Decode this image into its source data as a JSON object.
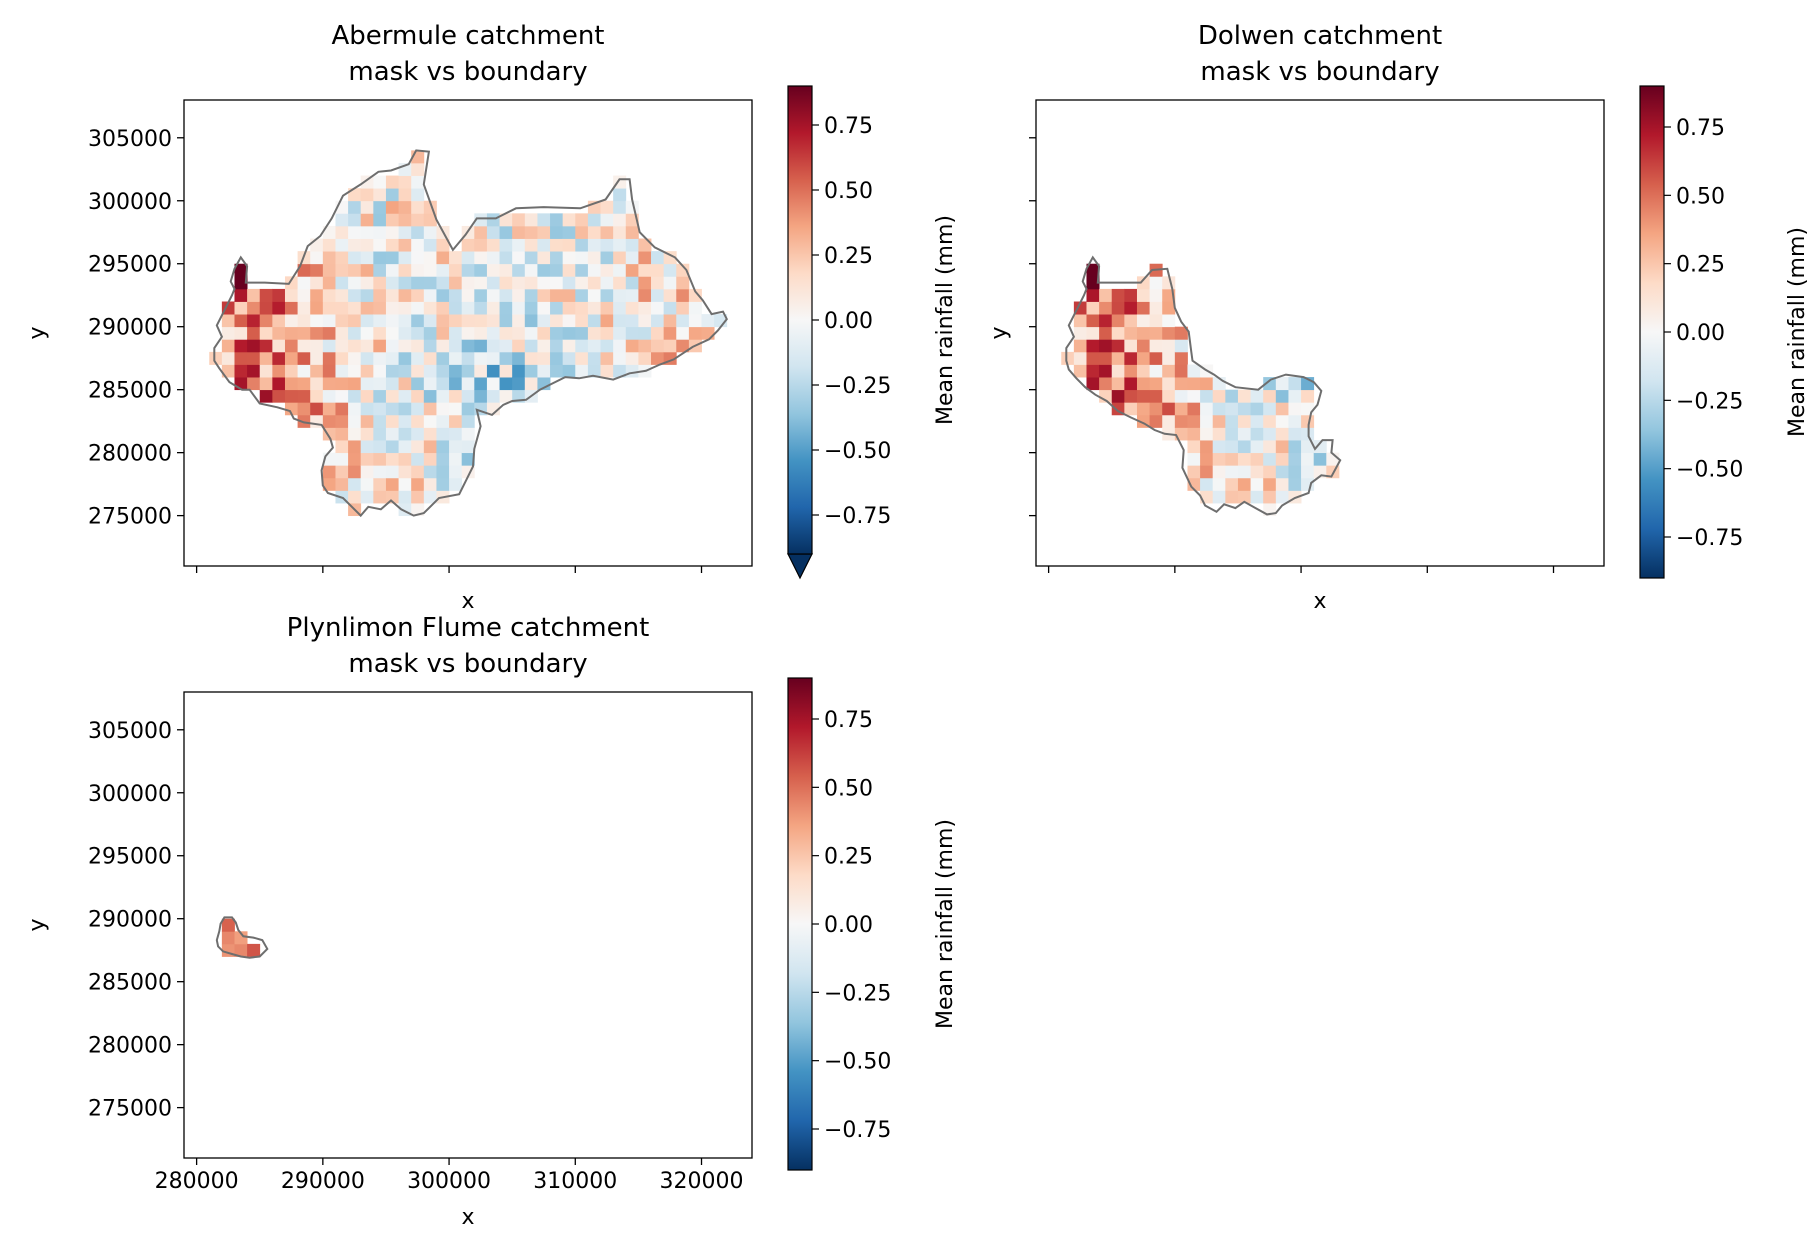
{
  "colorbar_label": "Mean rainfall (mm)",
  "colorbar_ticks": [
    "0.75",
    "0.50",
    "0.25",
    "0.00",
    "−0.25",
    "−0.50",
    "−0.75"
  ],
  "colormap": [
    "#053061",
    "#2166ac",
    "#4393c3",
    "#92c5de",
    "#d1e5f0",
    "#f7f7f7",
    "#fddbc7",
    "#f4a582",
    "#d6604d",
    "#b2182b",
    "#67001f"
  ],
  "boundary_color": "#6e6e6e",
  "chart_data": [
    {
      "type": "heatmap",
      "title": "Abermule catchment\nmask vs boundary",
      "xlabel": "x",
      "ylabel": "y",
      "xlim": [
        279000,
        324000
      ],
      "ylim": [
        271000,
        308000
      ],
      "xticks": [
        280000,
        290000,
        300000,
        310000,
        320000
      ],
      "xticklabels_visible": false,
      "yticks": [
        275000,
        280000,
        285000,
        290000,
        295000,
        300000,
        305000
      ],
      "yticklabels": [
        "275000",
        "280000",
        "285000",
        "290000",
        "295000",
        "300000",
        "305000"
      ],
      "colorbar": {
        "vmin": -0.9,
        "vmax": 0.9,
        "extend": "min",
        "label": "Mean rainfall (mm)"
      },
      "catchment": "abermule",
      "boundary": [
        [
          281400,
          288300
        ],
        [
          282000,
          289200
        ],
        [
          281600,
          290100
        ],
        [
          282300,
          291500
        ],
        [
          282800,
          292500
        ],
        [
          283000,
          293000
        ],
        [
          282700,
          293600
        ],
        [
          283000,
          294600
        ],
        [
          283500,
          295500
        ],
        [
          284000,
          294800
        ],
        [
          283900,
          293500
        ],
        [
          285400,
          293500
        ],
        [
          287300,
          293400
        ],
        [
          288200,
          294800
        ],
        [
          288800,
          296400
        ],
        [
          289800,
          297200
        ],
        [
          290700,
          298600
        ],
        [
          291600,
          300400
        ],
        [
          293000,
          301300
        ],
        [
          294400,
          302300
        ],
        [
          295400,
          302400
        ],
        [
          296800,
          302900
        ],
        [
          297400,
          304000
        ],
        [
          298400,
          303900
        ],
        [
          298000,
          301300
        ],
        [
          299000,
          298500
        ],
        [
          300300,
          296100
        ],
        [
          301300,
          297300
        ],
        [
          302200,
          298600
        ],
        [
          303700,
          298600
        ],
        [
          305300,
          299400
        ],
        [
          307500,
          299500
        ],
        [
          310400,
          299400
        ],
        [
          312400,
          300100
        ],
        [
          313500,
          301700
        ],
        [
          314300,
          301700
        ],
        [
          314500,
          300100
        ],
        [
          315100,
          297500
        ],
        [
          316300,
          296300
        ],
        [
          317900,
          295500
        ],
        [
          318800,
          294500
        ],
        [
          319500,
          292800
        ],
        [
          320100,
          292100
        ],
        [
          320800,
          291000
        ],
        [
          321700,
          291200
        ],
        [
          322000,
          290600
        ],
        [
          321300,
          289700
        ],
        [
          320600,
          289000
        ],
        [
          319300,
          288400
        ],
        [
          317800,
          287400
        ],
        [
          316700,
          287000
        ],
        [
          315600,
          286500
        ],
        [
          314300,
          286300
        ],
        [
          313000,
          285800
        ],
        [
          311400,
          286100
        ],
        [
          310300,
          285900
        ],
        [
          309200,
          286000
        ],
        [
          308200,
          285500
        ],
        [
          307200,
          285000
        ],
        [
          306100,
          284200
        ],
        [
          305000,
          284100
        ],
        [
          304300,
          283800
        ],
        [
          303400,
          283000
        ],
        [
          302200,
          283400
        ],
        [
          302500,
          282100
        ],
        [
          302000,
          280300
        ],
        [
          301900,
          278900
        ],
        [
          301300,
          277700
        ],
        [
          300800,
          276700
        ],
        [
          299200,
          276400
        ],
        [
          298700,
          275900
        ],
        [
          298000,
          275200
        ],
        [
          297200,
          275000
        ],
        [
          296200,
          275500
        ],
        [
          295400,
          276200
        ],
        [
          294600,
          275500
        ],
        [
          293600,
          275700
        ],
        [
          293000,
          275000
        ],
        [
          291600,
          276400
        ],
        [
          290400,
          276800
        ],
        [
          290000,
          277400
        ],
        [
          289900,
          278600
        ],
        [
          290200,
          279700
        ],
        [
          290800,
          280400
        ],
        [
          290600,
          281100
        ],
        [
          289900,
          282200
        ],
        [
          288500,
          282400
        ],
        [
          287700,
          282700
        ],
        [
          287400,
          283300
        ],
        [
          286400,
          283600
        ],
        [
          285000,
          283900
        ],
        [
          284200,
          285000
        ],
        [
          283600,
          285000
        ],
        [
          282600,
          285600
        ],
        [
          281800,
          286700
        ],
        [
          281400,
          287300
        ],
        [
          281400,
          288300
        ]
      ],
      "cells": {
        "dx": 1000,
        "dy": 1000,
        "x0": 281500,
        "y0": 275500,
        "ncols": 39,
        "nrows": 28,
        "note": "values within boundary only"
      }
    },
    {
      "type": "heatmap",
      "title": "Dolwen catchment\nmask vs boundary",
      "xlabel": "x",
      "ylabel": "y",
      "xlim": [
        279000,
        324000
      ],
      "ylim": [
        271000,
        308000
      ],
      "xticks": [
        280000,
        290000,
        300000,
        310000,
        320000
      ],
      "xticklabels_visible": false,
      "yticks": [
        275000,
        280000,
        285000,
        290000,
        295000,
        300000,
        305000
      ],
      "yticklabels_visible": false,
      "colorbar": {
        "vmin": -0.9,
        "vmax": 0.9,
        "extend": "neither",
        "label": "Mean rainfall (mm)"
      },
      "catchment": "dolwen",
      "boundary": [
        [
          281400,
          288300
        ],
        [
          282000,
          289200
        ],
        [
          281600,
          290100
        ],
        [
          282300,
          291500
        ],
        [
          282800,
          292500
        ],
        [
          283000,
          293000
        ],
        [
          282700,
          293600
        ],
        [
          283000,
          294600
        ],
        [
          283500,
          295500
        ],
        [
          284000,
          294800
        ],
        [
          283900,
          293500
        ],
        [
          285400,
          293500
        ],
        [
          287300,
          293500
        ],
        [
          288200,
          294500
        ],
        [
          289400,
          294600
        ],
        [
          289800,
          293000
        ],
        [
          290000,
          291500
        ],
        [
          290500,
          290400
        ],
        [
          291100,
          289600
        ],
        [
          291300,
          288000
        ],
        [
          291400,
          287300
        ],
        [
          292400,
          286600
        ],
        [
          293100,
          286200
        ],
        [
          293800,
          285700
        ],
        [
          294800,
          285200
        ],
        [
          296600,
          285000
        ],
        [
          297600,
          285800
        ],
        [
          298800,
          286200
        ],
        [
          300200,
          286000
        ],
        [
          301000,
          285600
        ],
        [
          301600,
          284900
        ],
        [
          301300,
          283800
        ],
        [
          300800,
          283200
        ],
        [
          300600,
          282200
        ],
        [
          300600,
          281300
        ],
        [
          301100,
          280300
        ],
        [
          301700,
          281000
        ],
        [
          302500,
          281000
        ],
        [
          302400,
          280000
        ],
        [
          303100,
          279400
        ],
        [
          302400,
          278100
        ],
        [
          301600,
          278200
        ],
        [
          300800,
          277600
        ],
        [
          300600,
          276800
        ],
        [
          299500,
          276400
        ],
        [
          298500,
          275800
        ],
        [
          298000,
          275200
        ],
        [
          297300,
          275100
        ],
        [
          296400,
          275600
        ],
        [
          295500,
          276100
        ],
        [
          294800,
          275600
        ],
        [
          293900,
          275900
        ],
        [
          293300,
          275300
        ],
        [
          292400,
          275800
        ],
        [
          292000,
          276600
        ],
        [
          291300,
          277300
        ],
        [
          290600,
          278800
        ],
        [
          290700,
          280200
        ],
        [
          290100,
          281400
        ],
        [
          289200,
          281500
        ],
        [
          288400,
          281800
        ],
        [
          287600,
          282300
        ],
        [
          286500,
          282800
        ],
        [
          285500,
          283300
        ],
        [
          284600,
          284100
        ],
        [
          283700,
          284600
        ],
        [
          282900,
          285200
        ],
        [
          282200,
          285900
        ],
        [
          281600,
          286600
        ],
        [
          281400,
          287300
        ],
        [
          281400,
          288300
        ]
      ]
    },
    {
      "type": "heatmap",
      "title": "Plynlimon Flume catchment\nmask vs boundary",
      "xlabel": "x",
      "ylabel": "y",
      "xlim": [
        279000,
        324000
      ],
      "ylim": [
        271000,
        308000
      ],
      "xticks": [
        280000,
        290000,
        300000,
        310000,
        320000
      ],
      "xticklabels": [
        "280000",
        "290000",
        "300000",
        "310000",
        "320000"
      ],
      "yticks": [
        275000,
        280000,
        285000,
        290000,
        295000,
        300000,
        305000
      ],
      "yticklabels": [
        "275000",
        "280000",
        "285000",
        "290000",
        "295000",
        "300000",
        "305000"
      ],
      "colorbar": {
        "vmin": -0.9,
        "vmax": 0.9,
        "extend": "neither",
        "label": "Mean rainfall (mm)"
      },
      "catchment": "plynlimon",
      "boundary": [
        [
          281600,
          288300
        ],
        [
          281800,
          289000
        ],
        [
          281900,
          289600
        ],
        [
          282200,
          290100
        ],
        [
          282800,
          290100
        ],
        [
          283100,
          289700
        ],
        [
          283300,
          289100
        ],
        [
          283700,
          288600
        ],
        [
          284500,
          288500
        ],
        [
          285200,
          288300
        ],
        [
          285600,
          287600
        ],
        [
          285000,
          287000
        ],
        [
          284200,
          286900
        ],
        [
          283500,
          287000
        ],
        [
          282800,
          287200
        ],
        [
          282100,
          287400
        ],
        [
          281700,
          287800
        ],
        [
          281600,
          288300
        ]
      ]
    }
  ]
}
